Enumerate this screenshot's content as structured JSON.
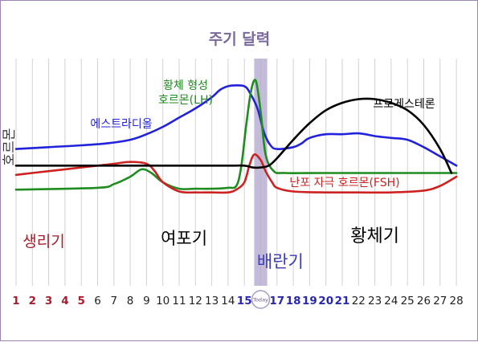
{
  "chart_data": {
    "type": "line",
    "title": "주기 달력",
    "ylabel": "호르몬",
    "x": [
      1,
      2,
      3,
      4,
      5,
      6,
      7,
      8,
      9,
      10,
      11,
      12,
      13,
      14,
      15,
      16,
      17,
      18,
      19,
      20,
      21,
      22,
      23,
      24,
      25,
      26,
      27,
      28
    ],
    "day_labels": [
      "1",
      "2",
      "3",
      "4",
      "5",
      "6",
      "7",
      "8",
      "9",
      "10",
      "11",
      "12",
      "13",
      "14",
      "15",
      "Today",
      "17",
      "18",
      "19",
      "20",
      "21",
      "22",
      "23",
      "24",
      "25",
      "26",
      "27",
      "28"
    ],
    "today_day": 16,
    "grid": true,
    "ovulation_band": [
      15.6,
      16.4
    ],
    "phase_labels": [
      {
        "key": "menstrual",
        "text": "생리기",
        "day": 2.7,
        "color": "#a51e2d"
      },
      {
        "key": "follicular",
        "text": "여포기",
        "day": 11.3,
        "color": "#000000"
      },
      {
        "key": "ovulation",
        "text": "배란기",
        "day": 17.2,
        "color": "#3c3cb4"
      },
      {
        "key": "luteal",
        "text": "황체기",
        "day": 23.0,
        "color": "#000000"
      }
    ],
    "series": [
      {
        "key": "estrogen",
        "name": "에스트라디올",
        "color": "#2222dd",
        "x": [
          1,
          3,
          5,
          6.5,
          8,
          9,
          10,
          11,
          12,
          13,
          13.5,
          14,
          14.5,
          15,
          15.3,
          15.8,
          16.2,
          16.6,
          17,
          18,
          18.5,
          19,
          20,
          21,
          22,
          23,
          24,
          25,
          26,
          27,
          28
        ],
        "values": [
          58,
          59,
          60,
          61,
          63,
          66,
          70,
          75,
          80,
          86,
          90,
          92,
          92.5,
          92,
          89,
          80,
          67,
          60,
          58,
          59,
          61,
          64,
          66,
          66,
          66.5,
          65,
          64,
          63,
          59,
          54,
          49
        ]
      },
      {
        "key": "lh",
        "name": "황체 형성 호르몬(LH)",
        "color": "#1e8c1e",
        "x": [
          1,
          6,
          7,
          8,
          8.7,
          9.3,
          10,
          11,
          12,
          13,
          14,
          14.5,
          14.8,
          15.1,
          15.4,
          15.7,
          16,
          16.3,
          16.8,
          17.5,
          20,
          28
        ],
        "values": [
          36,
          37,
          39,
          43,
          47,
          45,
          40,
          36.5,
          36.5,
          36.5,
          37,
          38,
          48,
          70,
          89,
          95,
          78,
          55,
          46,
          45,
          45,
          45
        ]
      },
      {
        "key": "fsh",
        "name": "난포 자극 호르몬(FSH)",
        "color": "#cc2222",
        "x": [
          1,
          3,
          5,
          7,
          8,
          9,
          9.5,
          10,
          11,
          12,
          13,
          14,
          14.5,
          15,
          15.3,
          15.6,
          16,
          16.3,
          16.7,
          17,
          18,
          20,
          22,
          24,
          26,
          27,
          28
        ],
        "values": [
          44,
          46,
          48,
          50,
          51,
          50,
          46,
          40,
          35,
          34.5,
          34.5,
          34.5,
          36,
          40,
          49,
          55,
          52,
          46,
          40,
          37,
          35,
          34.5,
          34.5,
          34.5,
          35.5,
          38,
          43
        ]
      },
      {
        "key": "progesterone",
        "name": "프로게스테론",
        "color": "#000000",
        "x": [
          1,
          5,
          10,
          14,
          15,
          15.5,
          16,
          16.5,
          17,
          18,
          19,
          20,
          21,
          22,
          23,
          24,
          25,
          26,
          27,
          27.7
        ],
        "values": [
          49,
          49,
          49,
          49,
          49,
          48,
          48,
          49,
          53,
          63,
          72,
          79,
          83,
          85,
          85,
          83,
          79,
          71,
          58,
          45
        ]
      }
    ]
  }
}
